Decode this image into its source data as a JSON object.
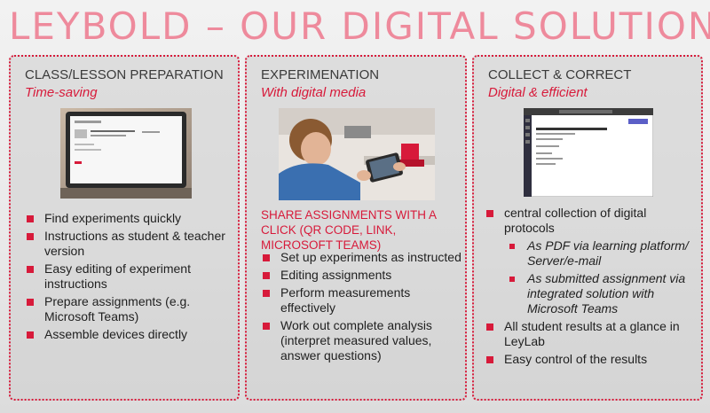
{
  "title": "LEYBOLD – OUR DIGITAL SOLUTION",
  "colors": {
    "accent": "#d71a3a",
    "title": "#ee8a9c"
  },
  "panels": [
    {
      "heading": "CLASS/LESSON PREPARATION",
      "subtitle": "Time-saving",
      "bullets": [
        "Find experiments quickly",
        "Instructions as student & teacher version",
        "Easy editing of experiment instructions",
        "Prepare assignments (e.g. Microsoft Teams)",
        "Assemble devices directly"
      ]
    },
    {
      "heading": "EXPERIMENATION",
      "subtitle": "With digital media",
      "highlight": "SHARE ASSIGNMENTS WITH A CLICK (QR CODE, LINK, MICROSOFT TEAMS)",
      "bullets": [
        "Set up experiments as instructed",
        "Editing assignments",
        "Perform measurements effectively",
        "Work out complete analysis (interpret measured values, answer questions)"
      ]
    },
    {
      "heading": "COLLECT & CORRECT",
      "subtitle": "Digital & efficient",
      "bullets": [
        "central collection of digital protocols",
        "As PDF via learning platform/ Server/e-mail",
        "As submitted assignment via integrated solution with Microsoft Teams",
        "All student results at a glance in LeyLab",
        "Easy control of the results"
      ]
    }
  ]
}
